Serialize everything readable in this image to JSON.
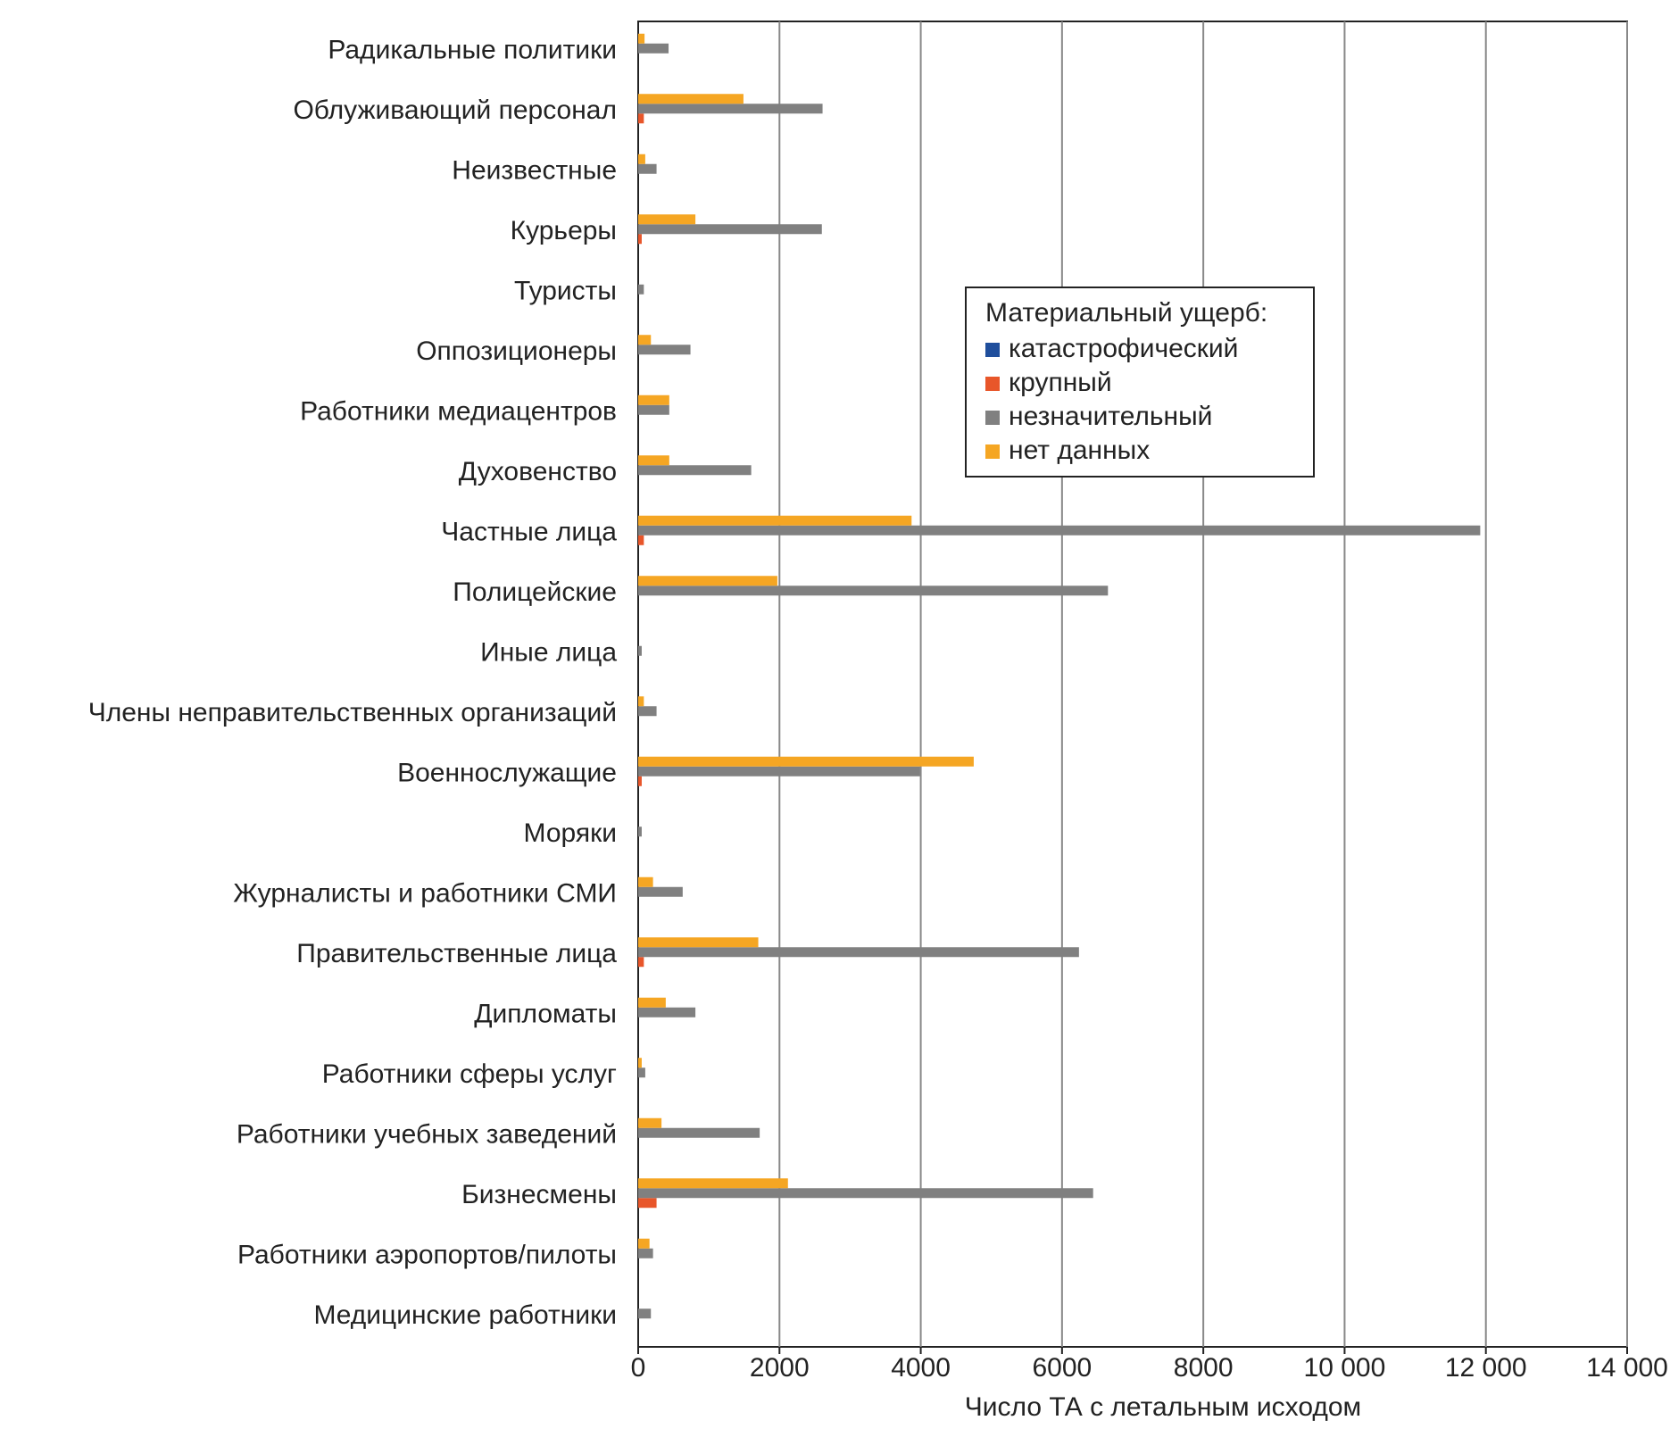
{
  "chart_data": {
    "type": "bar",
    "orientation": "horizontal",
    "xlabel": "Число ТА с летальным исходом",
    "legend_title": "Материальный ущерб:",
    "categories": [
      "Радикальные политики",
      "Облуживающий персонал",
      "Неизвестные",
      "Курьеры",
      "Туристы",
      "Оппозиционеры",
      "Работники медиацентров",
      "Духовенство",
      "Частные лица",
      "Полицейские",
      "Иные лица",
      "Члены неправительственных организаций",
      "Военнослужащие",
      "Моряки",
      "Журналисты и работники СМИ",
      "Правительственные лица",
      "Дипломаты",
      "Работники сферы услуг",
      "Работники учебных заведений",
      "Бизнесмены",
      "Работники аэропортов/пилоты",
      "Медицинские работники"
    ],
    "series": [
      {
        "name": "катастрофический",
        "color": "#1f4e9c",
        "values": [
          0,
          0,
          0,
          0,
          0,
          0,
          0,
          0,
          0,
          0,
          0,
          0,
          0,
          0,
          0,
          0,
          0,
          0,
          0,
          0,
          0,
          0
        ]
      },
      {
        "name": "крупный",
        "color": "#e8562a",
        "values": [
          0,
          80,
          0,
          50,
          0,
          0,
          0,
          0,
          80,
          0,
          0,
          0,
          50,
          0,
          0,
          80,
          0,
          0,
          0,
          260,
          0,
          0
        ]
      },
      {
        "name": "незначительный",
        "color": "#808080",
        "values": [
          430,
          2610,
          260,
          2600,
          80,
          740,
          440,
          1600,
          11920,
          6650,
          50,
          260,
          3990,
          50,
          630,
          6240,
          810,
          100,
          1720,
          6440,
          210,
          180
        ]
      },
      {
        "name": "нет данных",
        "color": "#f5a623",
        "values": [
          90,
          1490,
          100,
          810,
          0,
          180,
          440,
          440,
          3870,
          1970,
          0,
          80,
          4750,
          0,
          210,
          1700,
          390,
          50,
          330,
          2120,
          160,
          0
        ]
      }
    ],
    "xlim": [
      0,
      14000
    ],
    "xticks": [
      0,
      2000,
      4000,
      6000,
      8000,
      {
        "value": 10000,
        "label": "10 000"
      },
      {
        "value": 12000,
        "label": "12 000"
      },
      {
        "value": 14000,
        "label": "14 000"
      }
    ],
    "grid": true
  }
}
